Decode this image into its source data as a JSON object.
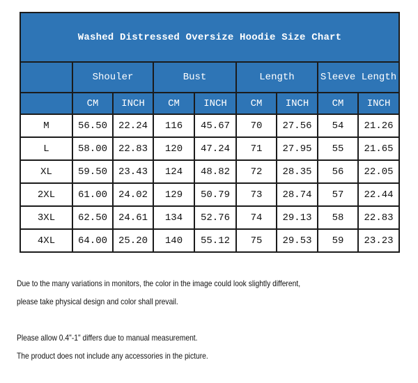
{
  "title": "Washed Distressed Oversize Hoodie Size Chart",
  "groups": [
    "Shouler",
    "Bust",
    "Length",
    "Sleeve Length"
  ],
  "units": [
    "CM",
    "INCH",
    "CM",
    "INCH",
    "CM",
    "INCH",
    "CM",
    "INCH"
  ],
  "rows": [
    [
      "M",
      "56.50",
      "22.24",
      "116",
      "45.67",
      "70",
      "27.56",
      "54",
      "21.26"
    ],
    [
      "L",
      "58.00",
      "22.83",
      "120",
      "47.24",
      "71",
      "27.95",
      "55",
      "21.65"
    ],
    [
      "XL",
      "59.50",
      "23.43",
      "124",
      "48.82",
      "72",
      "28.35",
      "56",
      "22.05"
    ],
    [
      "2XL",
      "61.00",
      "24.02",
      "129",
      "50.79",
      "73",
      "28.74",
      "57",
      "22.44"
    ],
    [
      "3XL",
      "62.50",
      "24.61",
      "134",
      "52.76",
      "74",
      "29.13",
      "58",
      "22.83"
    ],
    [
      "4XL",
      "64.00",
      "25.20",
      "140",
      "55.12",
      "75",
      "29.53",
      "59",
      "23.23"
    ]
  ],
  "notes": [
    "Due to the many variations in monitors, the color in the image could look slightly different,",
    " please take physical design and color shall prevail.",
    "Please allow 0.4\"-1\" differs due to manual measurement.",
    "The product does not include any accessories in the picture."
  ],
  "colors": {
    "header_bg": "#2e75b6",
    "header_text": "#ffffff",
    "border": "#1b1b1b"
  }
}
